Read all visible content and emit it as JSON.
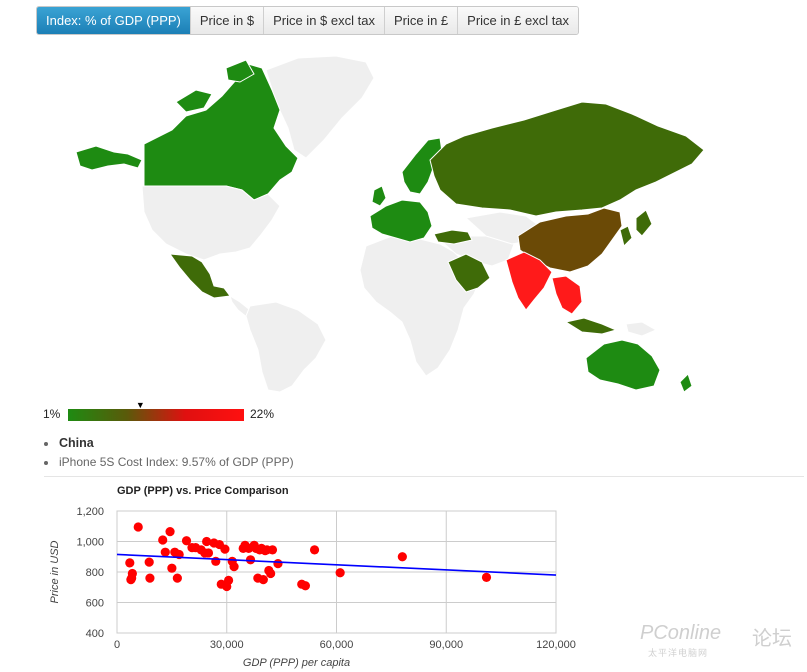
{
  "tabs": [
    {
      "label": "Index: % of GDP (PPP)",
      "active": true
    },
    {
      "label": "Price in $",
      "active": false
    },
    {
      "label": "Price in $ excl tax",
      "active": false
    },
    {
      "label": "Price in £",
      "active": false
    },
    {
      "label": "Price in £ excl tax",
      "active": false
    }
  ],
  "legend": {
    "min": "1%",
    "max": "22%",
    "marker_value": 9.57,
    "colors": [
      "#1e8b12",
      "#5a5a0a",
      "#e01010"
    ]
  },
  "selection": {
    "country": "China",
    "detail": "iPhone 5S Cost Index: 9.57% of GDP (PPP)"
  },
  "map_colors": {
    "low": "#1e8b12",
    "mid": "#3f6b08",
    "high": "#ff1a1a",
    "china": "#6b4a06",
    "none": "#efefef"
  },
  "watermark": {
    "brand": "PConline",
    "cn": "论坛",
    "sub": "太平洋电脑网"
  },
  "chart_data": {
    "type": "scatter",
    "title": "GDP (PPP) vs. Price Comparison",
    "xlabel": "GDP (PPP) per capita",
    "ylabel": "Price in USD",
    "xlim": [
      0,
      120000
    ],
    "ylim": [
      400,
      1200
    ],
    "xticks": [
      "0",
      "30,000",
      "60,000",
      "90,000",
      "120,000"
    ],
    "yticks": [
      "400",
      "600",
      "800",
      "1,000",
      "1,200"
    ],
    "grid": true,
    "point_color": "#ff0000",
    "line_color": "#0000ff",
    "trendline": {
      "x": [
        0,
        120000
      ],
      "y": [
        915,
        780
      ]
    },
    "points": [
      [
        3500,
        860
      ],
      [
        4000,
        760
      ],
      [
        4200,
        790
      ],
      [
        3800,
        750
      ],
      [
        5800,
        1095
      ],
      [
        8800,
        865
      ],
      [
        9000,
        760
      ],
      [
        12500,
        1010
      ],
      [
        13200,
        930
      ],
      [
        14500,
        1065
      ],
      [
        15000,
        825
      ],
      [
        15800,
        930
      ],
      [
        16500,
        760
      ],
      [
        17000,
        915
      ],
      [
        19000,
        1005
      ],
      [
        20500,
        960
      ],
      [
        21500,
        960
      ],
      [
        23000,
        945
      ],
      [
        24000,
        925
      ],
      [
        24500,
        1000
      ],
      [
        25000,
        925
      ],
      [
        26500,
        990
      ],
      [
        27000,
        870
      ],
      [
        28000,
        980
      ],
      [
        28500,
        720
      ],
      [
        29500,
        950
      ],
      [
        30000,
        705
      ],
      [
        30500,
        745
      ],
      [
        31500,
        870
      ],
      [
        32000,
        835
      ],
      [
        34500,
        955
      ],
      [
        35000,
        975
      ],
      [
        36000,
        955
      ],
      [
        36500,
        880
      ],
      [
        37500,
        975
      ],
      [
        38000,
        955
      ],
      [
        38500,
        760
      ],
      [
        39000,
        945
      ],
      [
        39500,
        955
      ],
      [
        40000,
        750
      ],
      [
        40500,
        940
      ],
      [
        41000,
        945
      ],
      [
        41500,
        810
      ],
      [
        42000,
        790
      ],
      [
        42500,
        945
      ],
      [
        44000,
        855
      ],
      [
        50500,
        720
      ],
      [
        51500,
        710
      ],
      [
        54000,
        945
      ],
      [
        61000,
        795
      ],
      [
        78000,
        900
      ],
      [
        101000,
        765
      ]
    ]
  }
}
